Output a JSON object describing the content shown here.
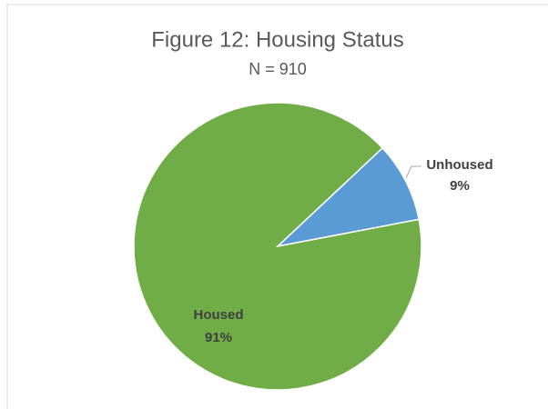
{
  "chart_data": {
    "type": "pie",
    "title": "Figure 12: Housing Status",
    "subtitle": "N = 910",
    "categories": [
      "Unhoused",
      "Housed"
    ],
    "values": [
      9,
      91
    ],
    "value_labels": [
      "9%",
      "91%"
    ],
    "colors": [
      "#5b9bd5",
      "#70ad47"
    ]
  }
}
